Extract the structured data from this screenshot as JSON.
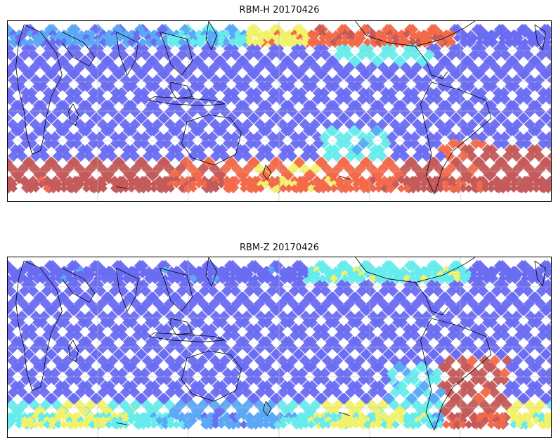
{
  "panels": [
    {
      "title": "RBM-H 20170426",
      "variant": "H"
    },
    {
      "title": "RBM-Z 20170426",
      "variant": "Z"
    }
  ],
  "colors": {
    "low": "#6a6cf2",
    "mid_low": "#5aa8f6",
    "mid": "#66ecec",
    "mid_high": "#f2f26a",
    "high": "#f26a4a",
    "max": "#c45a5a",
    "coast": "#000000",
    "grid": "#bdbdbd"
  },
  "map": {
    "projection": "cylindrical",
    "lat_range": [
      -60,
      60
    ],
    "lon_range": [
      20,
      380
    ],
    "grid_step_lon": 60,
    "grid_step_lat": 20
  }
}
